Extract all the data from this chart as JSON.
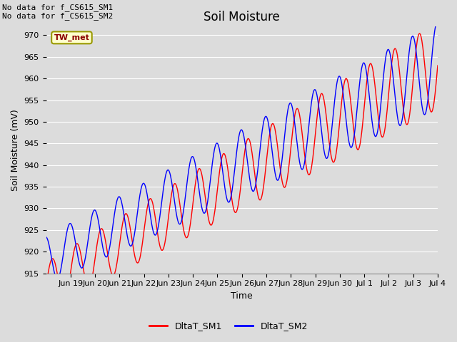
{
  "title": "Soil Moisture",
  "ylabel": "Soil Moisture (mV)",
  "xlabel": "Time",
  "ylim": [
    915,
    972
  ],
  "yticks": [
    915,
    920,
    925,
    930,
    935,
    940,
    945,
    950,
    955,
    960,
    965,
    970
  ],
  "background_color": "#dcdcdc",
  "plot_bg_color": "#dcdcdc",
  "line1_color": "red",
  "line2_color": "blue",
  "line1_label": "DltaT_SM1",
  "line2_label": "DltaT_SM2",
  "annotation_text": "No data for f_CS615_SM1\nNo data for f_CS615_SM2",
  "box_label": "TW_met",
  "box_color": "#ffffcc",
  "box_edge_color": "#999900",
  "title_fontsize": 12,
  "axis_fontsize": 9,
  "tick_fontsize": 8,
  "tick_positions": [
    1,
    2,
    3,
    4,
    5,
    6,
    7,
    8,
    9,
    10,
    11,
    12,
    13,
    14,
    15,
    16
  ],
  "tick_labels": [
    "Jun 19",
    "Jun 20",
    "Jun 21",
    "Jun 22",
    "Jun 23",
    "Jun 24",
    "Jun 25",
    "Jun 26",
    "Jun 27",
    "Jun 28",
    "Jun 29",
    "Jun 30",
    "Jul 1",
    "Jul 2",
    "Jul 3",
    "Jul 4"
  ],
  "xlim": [
    0,
    16
  ],
  "n_days": 16
}
